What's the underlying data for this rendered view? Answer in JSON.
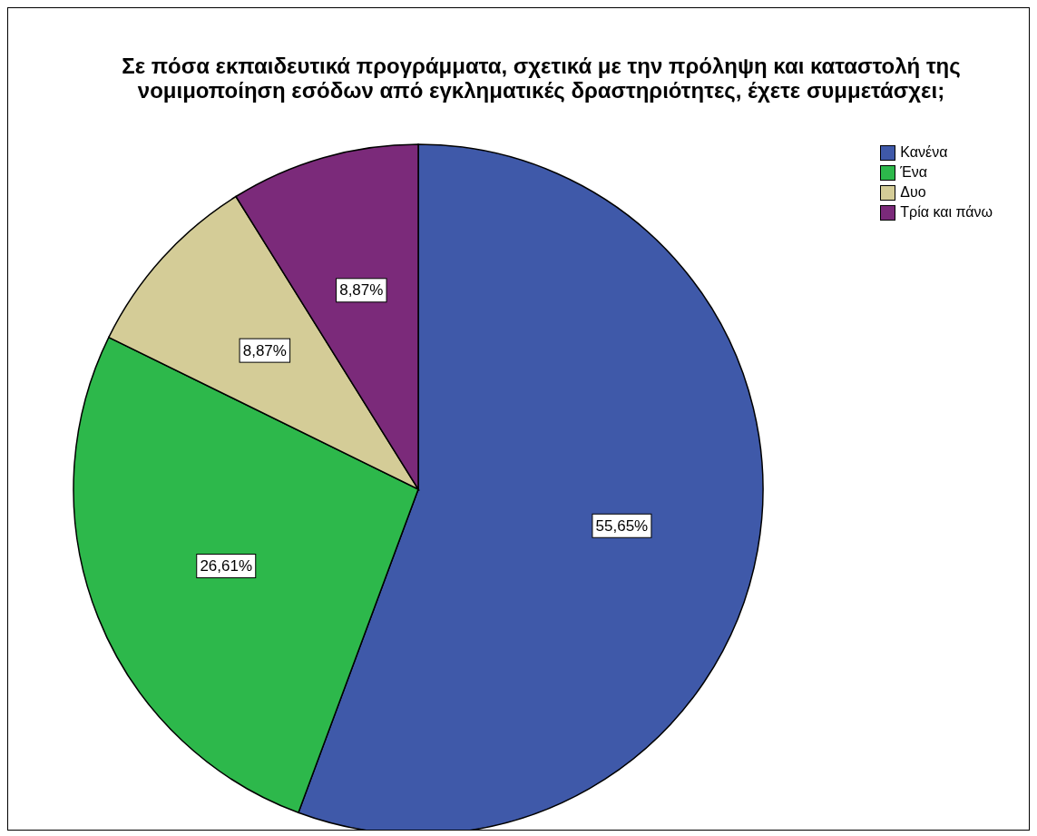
{
  "chart_data": {
    "type": "pie",
    "title": "Σε πόσα εκπαιδευτικά προγράμματα, σχετικά με την πρόληψη και καταστολή της   νομιμοποίηση εσόδων από εγκληματικές δραστηριότητες, έχετε συμμετάσχει;",
    "categories": [
      "Κανένα",
      "Ένα",
      "Δυο",
      "Τρία και πάνω"
    ],
    "values": [
      55.65,
      26.61,
      8.87,
      8.87
    ],
    "colors": [
      "#3f59a9",
      "#2db84b",
      "#d4cc97",
      "#7b2a7a"
    ],
    "value_labels": [
      "55,65%",
      "26,61%",
      "8,87%",
      "8,87%"
    ],
    "legend": "top right"
  }
}
